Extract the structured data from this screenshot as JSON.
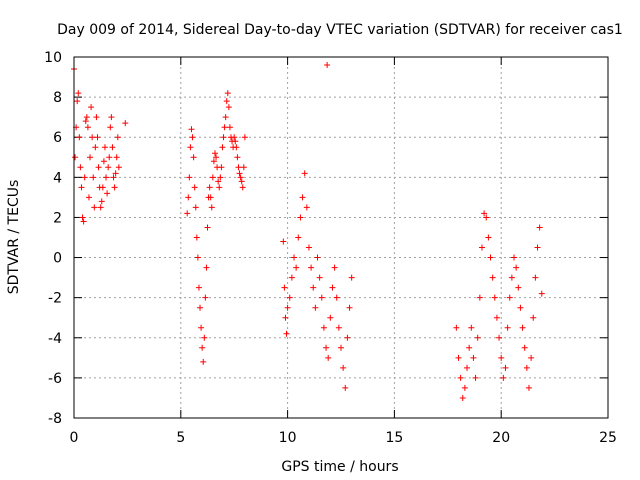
{
  "chart_data": {
    "type": "scatter",
    "title": "Day 009 of 2014, Sidereal Day-to-day VTEC variation (SDTVAR) for receiver cas1",
    "xlabel": "GPS time / hours",
    "ylabel": "SDTVAR / TECUs",
    "xlim": [
      0,
      25
    ],
    "ylim": [
      -8,
      10
    ],
    "xticks": [
      0,
      5,
      10,
      15,
      20,
      25
    ],
    "yticks": [
      -8,
      -6,
      -4,
      -2,
      0,
      2,
      4,
      6,
      8,
      10
    ],
    "grid": true,
    "marker": "+",
    "color": "#ff0000",
    "series": [
      {
        "name": "SDTVAR",
        "x": [
          0.0,
          0.05,
          0.1,
          0.15,
          0.2,
          0.25,
          0.3,
          0.35,
          0.4,
          0.45,
          0.5,
          0.55,
          0.6,
          0.65,
          0.7,
          0.75,
          0.8,
          0.85,
          0.9,
          0.95,
          1.0,
          1.05,
          1.1,
          1.15,
          1.2,
          1.25,
          1.3,
          1.35,
          1.4,
          1.45,
          1.5,
          1.55,
          1.6,
          1.65,
          1.7,
          1.75,
          1.8,
          1.85,
          1.9,
          1.95,
          2.0,
          2.05,
          2.1,
          2.4,
          5.3,
          5.35,
          5.4,
          5.45,
          5.5,
          5.55,
          5.6,
          5.65,
          5.7,
          5.75,
          5.8,
          5.85,
          5.9,
          5.95,
          6.0,
          6.05,
          6.1,
          6.15,
          6.2,
          6.25,
          6.3,
          6.35,
          6.4,
          6.45,
          6.5,
          6.55,
          6.6,
          6.65,
          6.7,
          6.75,
          6.8,
          6.85,
          6.9,
          6.95,
          7.0,
          7.05,
          7.1,
          7.15,
          7.2,
          7.25,
          7.3,
          7.35,
          7.4,
          7.45,
          7.5,
          7.55,
          7.6,
          7.65,
          7.7,
          7.75,
          7.8,
          7.85,
          7.9,
          7.95,
          8.0,
          9.8,
          9.85,
          9.9,
          9.95,
          10.0,
          10.1,
          10.2,
          10.3,
          10.4,
          10.5,
          10.6,
          10.7,
          10.8,
          10.9,
          11.0,
          11.1,
          11.2,
          11.3,
          11.4,
          11.5,
          11.6,
          11.7,
          11.8,
          11.9,
          12.0,
          12.1,
          12.2,
          12.3,
          12.4,
          12.5,
          12.6,
          12.7,
          12.8,
          12.9,
          13.0,
          11.85,
          17.9,
          18.0,
          18.1,
          18.2,
          18.3,
          18.4,
          18.5,
          18.6,
          18.7,
          18.8,
          18.9,
          19.0,
          19.1,
          19.2,
          19.3,
          19.4,
          19.5,
          19.6,
          19.7,
          19.8,
          19.9,
          20.0,
          20.1,
          20.2,
          20.3,
          20.4,
          20.5,
          20.6,
          20.7,
          20.8,
          20.9,
          21.0,
          21.1,
          21.2,
          21.3,
          21.4,
          21.5,
          21.6,
          21.7,
          21.8,
          21.9
        ],
        "y": [
          9.4,
          5.0,
          6.5,
          7.8,
          8.2,
          6.0,
          4.5,
          3.5,
          2.0,
          1.8,
          4.0,
          6.8,
          7.0,
          6.5,
          3.0,
          5.0,
          7.5,
          6.0,
          4.0,
          2.5,
          5.5,
          7.0,
          6.0,
          4.5,
          3.5,
          2.5,
          2.8,
          3.5,
          4.8,
          5.5,
          4.0,
          3.2,
          4.5,
          5.0,
          6.5,
          7.0,
          5.5,
          4.0,
          3.5,
          4.2,
          5.0,
          6.0,
          4.5,
          6.7,
          2.2,
          3.0,
          4.0,
          5.5,
          6.4,
          6.0,
          5.0,
          3.5,
          2.5,
          1.0,
          0.0,
          -1.5,
          -2.5,
          -3.5,
          -4.5,
          -5.2,
          -4.0,
          -2.0,
          -0.5,
          1.5,
          3.0,
          3.5,
          3.0,
          2.5,
          4.0,
          4.8,
          5.2,
          5.0,
          4.5,
          3.8,
          3.5,
          4.0,
          4.5,
          5.5,
          6.0,
          6.5,
          7.0,
          7.8,
          8.2,
          7.5,
          6.5,
          6.0,
          5.8,
          5.5,
          6.0,
          5.8,
          5.5,
          5.0,
          4.5,
          4.2,
          4.0,
          3.8,
          3.5,
          4.5,
          6.0,
          0.8,
          -1.5,
          -3.0,
          -3.8,
          -2.5,
          -2.0,
          -1.0,
          0.0,
          -0.5,
          1.0,
          2.0,
          3.0,
          4.2,
          2.5,
          0.5,
          -0.5,
          -1.5,
          -2.5,
          0.0,
          -1.0,
          -2.0,
          -3.5,
          -4.5,
          -5.0,
          -3.0,
          -1.5,
          -0.5,
          -2.0,
          -3.5,
          -4.5,
          -5.5,
          -6.5,
          -4.0,
          -2.5,
          -1.0,
          9.6,
          -3.5,
          -5.0,
          -6.0,
          -7.0,
          -6.5,
          -5.5,
          -4.5,
          -3.5,
          -5.0,
          -6.0,
          -4.0,
          -2.0,
          0.5,
          2.2,
          2.0,
          1.0,
          0.0,
          -1.0,
          -2.0,
          -3.0,
          -4.0,
          -5.0,
          -6.0,
          -5.5,
          -3.5,
          -2.0,
          -1.0,
          0.0,
          -0.5,
          -1.5,
          -2.5,
          -3.5,
          -4.5,
          -5.5,
          -6.5,
          -5.0,
          -3.0,
          -1.0,
          0.5,
          1.5,
          -1.8
        ]
      }
    ]
  }
}
